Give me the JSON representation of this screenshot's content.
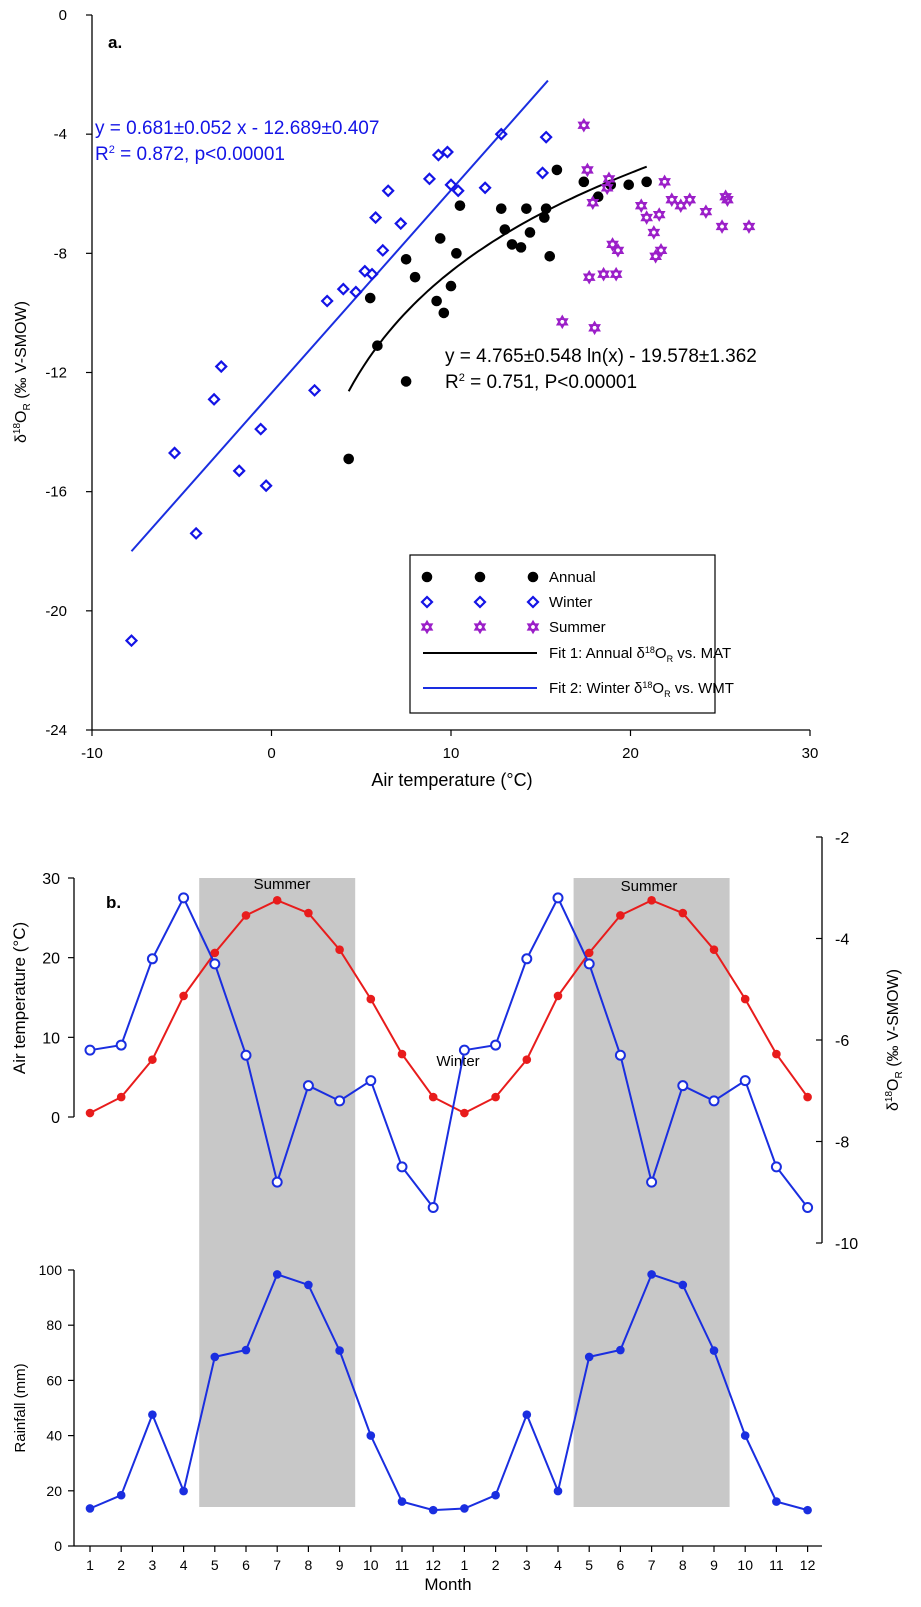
{
  "colors": {
    "annual": "#000000",
    "winter": "#1414e6",
    "summer": "#9b1fc8",
    "temp_line": "#e81c1c",
    "iso_line": "#1a2ee0",
    "rain_line": "#1a2ee0",
    "shade": "#c8c8c8"
  },
  "chart_data": [
    {
      "type": "scatter",
      "panel_label": "a.",
      "xlabel": "Air temperature (°C)",
      "ylabel": "δ18OR (‰ V-SMOW)",
      "xlim": [
        -10,
        30
      ],
      "ylim": [
        -24,
        0
      ],
      "xticks": [
        "-10",
        "0",
        "10",
        "20",
        "30"
      ],
      "yticks": [
        "0",
        "-4",
        "-8",
        "-12",
        "-16",
        "-20",
        "-24"
      ],
      "fit_winter": {
        "equation": "y = 0.681±0.052 x - 12.689±0.407",
        "r2": "R2 = 0.872, p<0.00001",
        "slope": 0.681,
        "intercept": -12.689,
        "x_range": [
          -7.8,
          15.4
        ]
      },
      "fit_annual": {
        "equation": "y = 4.765±0.548 ln(x) - 19.578±1.362",
        "r2": "R2 = 0.751, P<0.00001",
        "a": 4.765,
        "b": -19.578,
        "x_range": [
          4.3,
          20.9
        ]
      },
      "legend": {
        "annual": "Annual",
        "winter": "Winter",
        "summer": "Summer",
        "fit1": "Fit 1: Annual δ18OR vs. MAT",
        "fit2": "Fit 2: Winter δ18OR vs. WMT"
      },
      "series": [
        {
          "name": "Annual",
          "points": [
            [
              4.3,
              -14.9
            ],
            [
              5.5,
              -9.5
            ],
            [
              5.9,
              -11.1
            ],
            [
              7.5,
              -8.2
            ],
            [
              7.5,
              -12.3
            ],
            [
              8.0,
              -8.8
            ],
            [
              9.2,
              -9.6
            ],
            [
              9.4,
              -7.5
            ],
            [
              9.6,
              -10.0
            ],
            [
              10.0,
              -9.1
            ],
            [
              10.3,
              -8.0
            ],
            [
              10.5,
              -6.4
            ],
            [
              12.8,
              -6.5
            ],
            [
              13.0,
              -7.2
            ],
            [
              13.4,
              -7.7
            ],
            [
              13.9,
              -7.8
            ],
            [
              14.2,
              -6.5
            ],
            [
              14.4,
              -7.3
            ],
            [
              15.2,
              -6.8
            ],
            [
              15.3,
              -6.5
            ],
            [
              15.5,
              -8.1
            ],
            [
              15.9,
              -5.2
            ],
            [
              17.4,
              -5.6
            ],
            [
              18.2,
              -6.1
            ],
            [
              18.9,
              -5.7
            ],
            [
              19.9,
              -5.7
            ],
            [
              20.9,
              -5.6
            ]
          ]
        },
        {
          "name": "Winter",
          "points": [
            [
              -7.8,
              -21.0
            ],
            [
              -5.4,
              -14.7
            ],
            [
              -4.2,
              -17.4
            ],
            [
              -3.2,
              -12.9
            ],
            [
              -2.8,
              -11.8
            ],
            [
              -1.8,
              -15.3
            ],
            [
              -0.6,
              -13.9
            ],
            [
              -0.3,
              -15.8
            ],
            [
              2.4,
              -12.6
            ],
            [
              3.1,
              -9.6
            ],
            [
              4.0,
              -9.2
            ],
            [
              4.7,
              -9.3
            ],
            [
              5.2,
              -8.6
            ],
            [
              5.6,
              -8.7
            ],
            [
              5.8,
              -6.8
            ],
            [
              6.2,
              -7.9
            ],
            [
              6.5,
              -5.9
            ],
            [
              7.2,
              -7.0
            ],
            [
              8.8,
              -5.5
            ],
            [
              9.3,
              -4.7
            ],
            [
              9.8,
              -4.6
            ],
            [
              10.0,
              -5.7
            ],
            [
              10.4,
              -5.9
            ],
            [
              11.9,
              -5.8
            ],
            [
              12.8,
              -4.0
            ],
            [
              15.1,
              -5.3
            ],
            [
              15.3,
              -4.1
            ]
          ]
        },
        {
          "name": "Summer",
          "points": [
            [
              16.2,
              -10.3
            ],
            [
              17.4,
              -3.7
            ],
            [
              17.6,
              -5.2
            ],
            [
              17.7,
              -8.8
            ],
            [
              17.9,
              -6.3
            ],
            [
              18.0,
              -10.5
            ],
            [
              18.5,
              -8.7
            ],
            [
              18.7,
              -5.8
            ],
            [
              18.8,
              -5.5
            ],
            [
              19.0,
              -7.7
            ],
            [
              19.2,
              -8.7
            ],
            [
              19.3,
              -7.9
            ],
            [
              20.6,
              -6.4
            ],
            [
              20.9,
              -6.8
            ],
            [
              21.3,
              -7.3
            ],
            [
              21.4,
              -8.1
            ],
            [
              21.6,
              -6.7
            ],
            [
              21.7,
              -7.9
            ],
            [
              21.9,
              -5.6
            ],
            [
              22.3,
              -6.2
            ],
            [
              22.8,
              -6.4
            ],
            [
              23.3,
              -6.2
            ],
            [
              24.2,
              -6.6
            ],
            [
              25.1,
              -7.1
            ],
            [
              25.3,
              -6.1
            ],
            [
              25.4,
              -6.2
            ],
            [
              26.6,
              -7.1
            ]
          ]
        }
      ]
    },
    {
      "type": "line",
      "panel_label": "b.",
      "xlabel": "Month",
      "categories": [
        "1",
        "2",
        "3",
        "4",
        "5",
        "6",
        "7",
        "8",
        "9",
        "10",
        "11",
        "12",
        "1",
        "2",
        "3",
        "4",
        "5",
        "6",
        "7",
        "8",
        "9",
        "10",
        "11",
        "12"
      ],
      "shade_labels": [
        "Summer",
        "Summer"
      ],
      "winter_label": "Winter",
      "shaded_months": [
        [
          5,
          9
        ],
        [
          17,
          21
        ]
      ],
      "temperature": {
        "ylabel": "Air temperature (°C)",
        "ylim": [
          0,
          30
        ],
        "yticks": [
          "0",
          "10",
          "20",
          "30"
        ],
        "values": [
          0.5,
          2.5,
          7.2,
          15.2,
          20.6,
          25.3,
          27.2,
          25.6,
          21.0,
          14.8,
          7.9,
          2.5,
          0.5,
          2.5,
          7.2,
          15.2,
          20.6,
          25.3,
          27.2,
          25.6,
          21.0,
          14.8,
          7.9,
          2.5
        ]
      },
      "isotope": {
        "ylabel": "δ18OR (‰ V-SMOW)",
        "ylim": [
          -10,
          -2
        ],
        "yticks": [
          "-2",
          "-4",
          "-6",
          "-8",
          "-10"
        ],
        "values": [
          -6.2,
          -6.1,
          -4.4,
          -3.2,
          -4.5,
          -6.3,
          -8.8,
          -6.9,
          -7.2,
          -6.8,
          -8.5,
          -9.3,
          -6.2,
          -6.1,
          -4.4,
          -3.2,
          -4.5,
          -6.3,
          -8.8,
          -6.9,
          -7.2,
          -6.8,
          -8.5,
          -9.3
        ]
      },
      "rainfall": {
        "ylabel": "Rainfall (mm)",
        "ylim": [
          0,
          100
        ],
        "yticks": [
          "0",
          "20",
          "40",
          "60",
          "80",
          "100"
        ],
        "values": [
          13.6,
          18.4,
          47.6,
          19.9,
          68.5,
          71.0,
          98.4,
          94.6,
          70.8,
          40.0,
          16.1,
          13.0,
          13.6,
          18.4,
          47.6,
          19.9,
          68.5,
          71.0,
          98.4,
          94.6,
          70.8,
          40.0,
          16.1,
          13.0
        ]
      }
    }
  ]
}
